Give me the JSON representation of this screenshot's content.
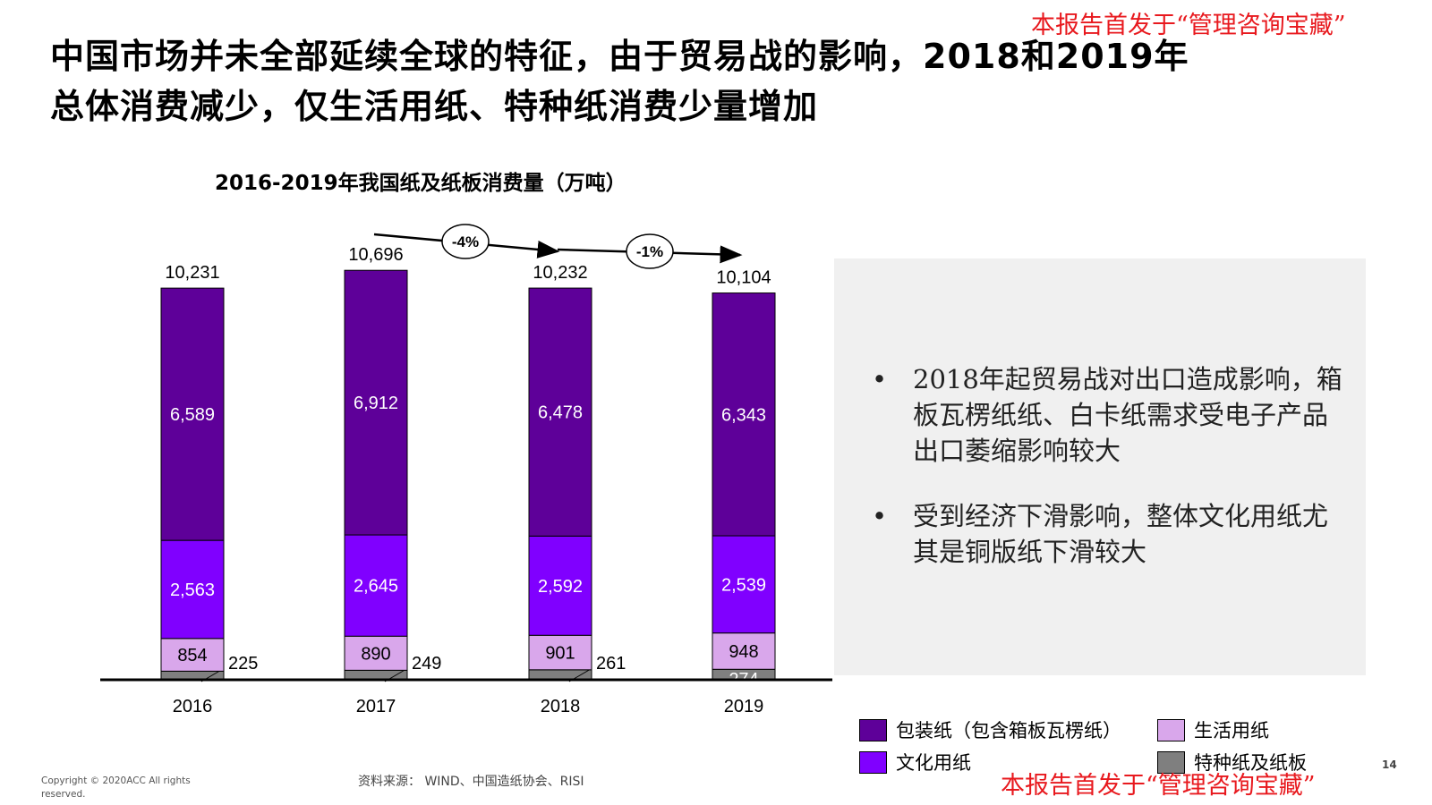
{
  "watermark_top": "本报告首发于“管理咨询宝藏”",
  "watermark_bottom": "本报告首发于“管理咨询宝藏”",
  "headline": {
    "line1": "中国市场并未全部延续全球的特征，由于贸易战的影响，2018和2019年",
    "line2": "总体消费减少，仅生活用纸、特种纸消费少量增加"
  },
  "chart_data": {
    "type": "bar",
    "stacked": true,
    "title": "2016-2019年我国纸及纸板消费量（万吨）",
    "categories": [
      "2016",
      "2017",
      "2018",
      "2019"
    ],
    "series": [
      {
        "name": "特种纸及纸板",
        "color": "#7f7f7f",
        "values": [
          225,
          249,
          261,
          274
        ],
        "labels": [
          "225",
          "249",
          "261",
          "274"
        ]
      },
      {
        "name": "生活用纸",
        "color": "#d9a7eb",
        "values": [
          854,
          890,
          901,
          948
        ],
        "labels": [
          "854",
          "890",
          "901",
          "948"
        ]
      },
      {
        "name": "文化用纸",
        "color": "#8000ff",
        "values": [
          2563,
          2645,
          2592,
          2539
        ],
        "labels": [
          "2,563",
          "2,645",
          "2,592",
          "2,539"
        ]
      },
      {
        "name": "包装纸（包含箱板瓦楞纸）",
        "color": "#5e0099",
        "values": [
          6589,
          6912,
          6478,
          6343
        ],
        "labels": [
          "6,589",
          "6,912",
          "6,478",
          "6,343"
        ]
      }
    ],
    "totals": [
      10231,
      10696,
      10232,
      10104
    ],
    "total_labels": [
      "10,231",
      "10,696",
      "10,232",
      "10,104"
    ],
    "growth_annotations": [
      {
        "from": "2017",
        "to": "2018",
        "label": "-4%"
      },
      {
        "from": "2018",
        "to": "2019",
        "label": "-1%"
      }
    ],
    "ylim": [
      0,
      11000
    ],
    "grid": false,
    "legend_position": "bottom-right"
  },
  "bullets": [
    "2018年起贸易战对出口造成影响，箱板瓦楞纸纸、白卡纸需求受电子产品出口萎缩影响较大",
    "受到经济下滑影响，整体文化用纸尤其是铜版纸下滑较大"
  ],
  "bullet_marker": "•",
  "legend": [
    {
      "label": "包装纸（包含箱板瓦楞纸）",
      "color": "#5e0099"
    },
    {
      "label": "生活用纸",
      "color": "#d9a7eb"
    },
    {
      "label": "文化用纸",
      "color": "#8000ff"
    },
    {
      "label": "特种纸及纸板",
      "color": "#7f7f7f"
    }
  ],
  "footer": {
    "copyright": "Copyright © 2020ACC  All rights reserved.",
    "source": "资料来源：  WIND、中国造纸协会、RISI",
    "page_number": "14"
  }
}
